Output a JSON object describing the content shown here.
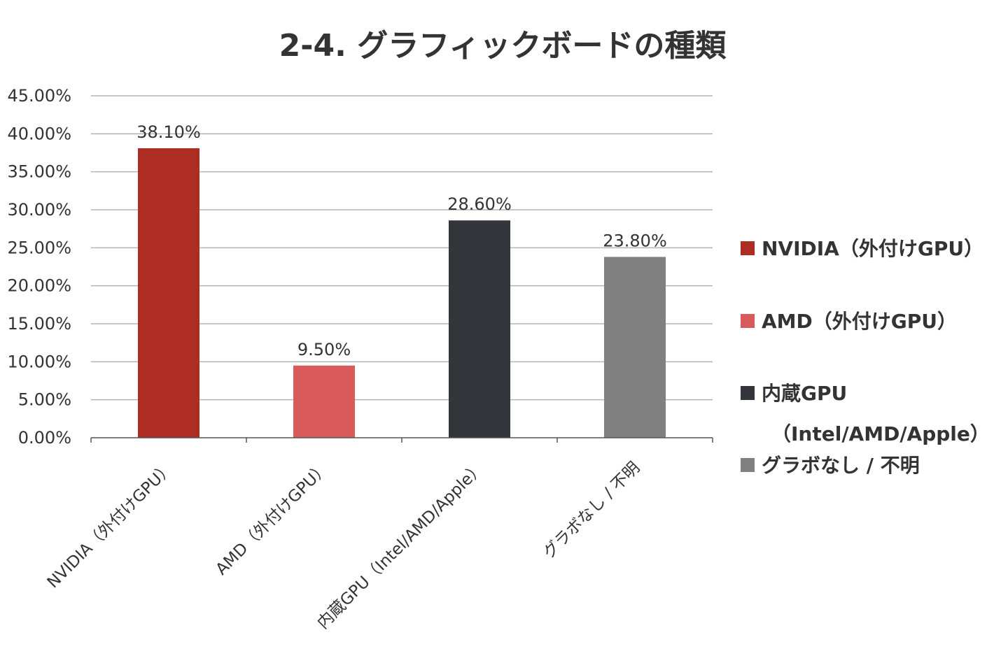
{
  "chart_data": {
    "type": "bar",
    "title": "2-4. グラフィックボードの種類",
    "xlabel": "",
    "ylabel": "",
    "ylim": [
      0,
      45
    ],
    "y_ticks": [
      0,
      5,
      10,
      15,
      20,
      25,
      30,
      35,
      40,
      45
    ],
    "y_tick_labels": [
      "0.00%",
      "5.00%",
      "10.00%",
      "15.00%",
      "20.00%",
      "25.00%",
      "30.00%",
      "35.00%",
      "40.00%",
      "45.00%"
    ],
    "categories": [
      "NVIDIA（外付けGPU）",
      "AMD（外付けGPU）",
      "内蔵GPU（Intel/AMD/Apple）",
      "グラボなし / 不明"
    ],
    "values": [
      38.1,
      9.5,
      28.6,
      23.8
    ],
    "data_labels": [
      "38.10%",
      "9.50%",
      "28.60%",
      "23.80%"
    ],
    "colors": [
      "#ad2d23",
      "#d95a5a",
      "#32363b",
      "#808080"
    ],
    "grid": true,
    "legend": {
      "position": "right",
      "entries": [
        {
          "lines": [
            "NVIDIA（外付けGPU）"
          ],
          "color": "#ad2d23"
        },
        {
          "lines": [
            "AMD（外付けGPU）"
          ],
          "color": "#d95a5a"
        },
        {
          "lines": [
            "内蔵GPU",
            "（Intel/AMD/Apple）"
          ],
          "color": "#32363b"
        },
        {
          "lines": [
            "グラボなし / 不明"
          ],
          "color": "#808080"
        }
      ]
    }
  }
}
